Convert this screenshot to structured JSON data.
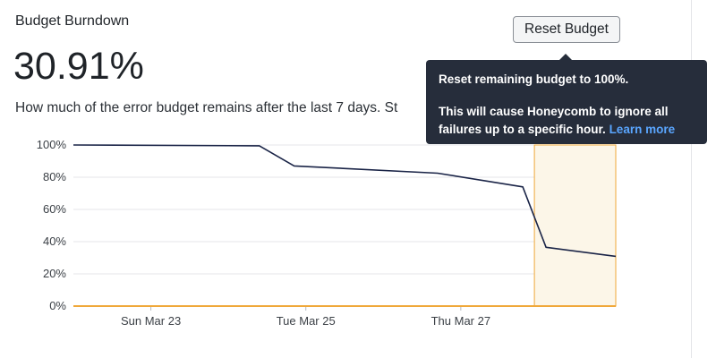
{
  "panel": {
    "title": "Budget Burndown",
    "value": "30.91%",
    "description": "How much of the error budget remains after the last 7 days. St"
  },
  "reset_button": {
    "label": "Reset Budget"
  },
  "tooltip": {
    "line1": "Reset remaining budget to 100%.",
    "line2": "This will cause Honeycomb to ignore all",
    "line3": "failures up to a specific hour.",
    "link": "Learn more"
  },
  "chart_data": {
    "type": "line",
    "title": "",
    "xlabel": "",
    "ylabel": "",
    "y_ticks": [
      "0%",
      "20%",
      "40%",
      "60%",
      "80%",
      "100%"
    ],
    "y_tick_values": [
      0,
      20,
      40,
      60,
      80,
      100
    ],
    "ylim": [
      0,
      100
    ],
    "x_tick_labels": [
      "Sun Mar 23",
      "Tue Mar 25",
      "Thu Mar 27"
    ],
    "x_tick_values": [
      1,
      3,
      5
    ],
    "xlim": [
      0,
      7
    ],
    "grid": true,
    "series": [
      {
        "x": [
          0,
          2.4,
          2.85,
          4.7,
          5.8,
          6.1,
          7.0
        ],
        "values": [
          100,
          99.5,
          87,
          82.5,
          74,
          36.5,
          30.91
        ],
        "color": "#1a2447"
      }
    ],
    "highlight_region": {
      "x_start": 5.95,
      "x_end": 7.0,
      "fill": "#fcf6e8",
      "stroke": "#f0a83a"
    },
    "baseline_color": "#f0a83a"
  }
}
